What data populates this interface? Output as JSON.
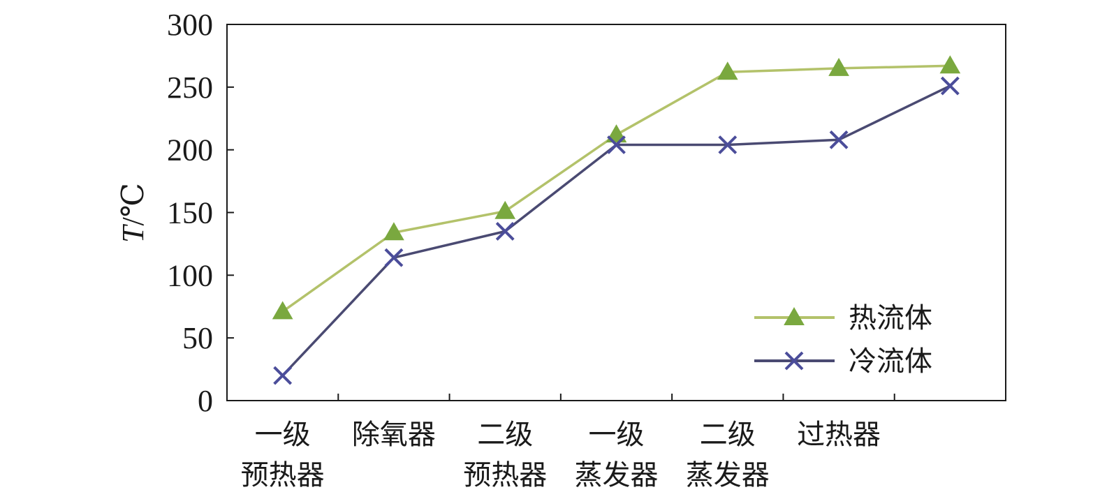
{
  "chart_data": {
    "type": "line",
    "categories": [
      [
        "一级",
        "预热器"
      ],
      [
        "除氧器"
      ],
      [
        "二级",
        "预热器"
      ],
      [
        "一级",
        "蒸发器"
      ],
      [
        "二级",
        "蒸发器"
      ],
      [
        "过热器"
      ]
    ],
    "ylabel_italic": "T",
    "ylabel_unit": "/℃",
    "ylim": [
      0,
      300
    ],
    "yticks": [
      0,
      50,
      100,
      150,
      200,
      250,
      300
    ],
    "grid": false,
    "legend_position": "bottom-right",
    "series": [
      {
        "name": "热流体",
        "marker": "triangle",
        "color": "#b3c26a",
        "marker_color": "#7aa83f",
        "x": [
          0.5,
          1.5,
          2.5,
          3.5,
          4.5,
          5.5,
          6.5
        ],
        "values": [
          71,
          134,
          151,
          212,
          262,
          265,
          267
        ]
      },
      {
        "name": "冷流体",
        "marker": "x",
        "color": "#4a4a72",
        "marker_color": "#4b4d9a",
        "x": [
          0.5,
          1.5,
          2.5,
          3.5,
          4.5,
          5.5,
          6.5
        ],
        "values": [
          20,
          114,
          135,
          204,
          204,
          208,
          251
        ]
      }
    ]
  }
}
